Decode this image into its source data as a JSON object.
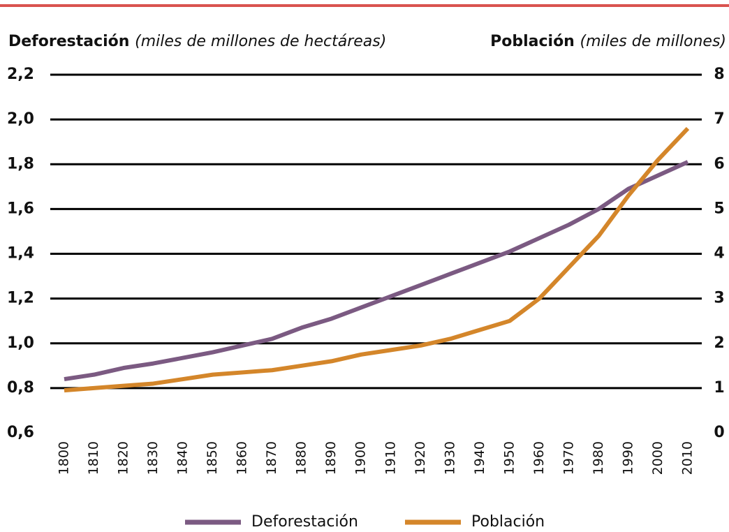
{
  "chart_data": {
    "type": "line",
    "y_label": {
      "name": "Deforestación",
      "unit": "(miles de millones de hectáreas)"
    },
    "y2_label": {
      "name": "Población",
      "unit": "(miles de millones)"
    },
    "categories": [
      "1800",
      "1810",
      "1820",
      "1830",
      "1840",
      "1850",
      "1860",
      "1870",
      "1880",
      "1890",
      "1900",
      "1910",
      "1920",
      "1930",
      "1940",
      "1950",
      "1960",
      "1970",
      "1980",
      "1990",
      "2000",
      "2010"
    ],
    "series": [
      {
        "name": "Deforestación",
        "color": "#7b5a82",
        "values": [
          0.84,
          0.86,
          0.89,
          0.91,
          0.935,
          0.96,
          0.99,
          1.02,
          1.07,
          1.11,
          1.16,
          1.21,
          1.26,
          1.31,
          1.36,
          1.41,
          1.47,
          1.53,
          1.6,
          1.69,
          1.75,
          1.81
        ]
      },
      {
        "name": "Población",
        "color": "#d4862a",
        "axis": "y2",
        "values": [
          0.95,
          1.0,
          1.05,
          1.1,
          1.2,
          1.3,
          1.35,
          1.4,
          1.5,
          1.6,
          1.75,
          1.85,
          1.95,
          2.1,
          2.3,
          2.5,
          3.0,
          3.7,
          4.4,
          5.3,
          6.1,
          6.8
        ]
      }
    ],
    "ylim": [
      0.6,
      2.2
    ],
    "yticks": [
      {
        "value": 0.6,
        "label": "0,6"
      },
      {
        "value": 0.8,
        "label": "0,8"
      },
      {
        "value": 1.0,
        "label": "1,0"
      },
      {
        "value": 1.2,
        "label": "1,2"
      },
      {
        "value": 1.4,
        "label": "1,4"
      },
      {
        "value": 1.6,
        "label": "1,6"
      },
      {
        "value": 1.8,
        "label": "1,8"
      },
      {
        "value": 2.0,
        "label": "2,0"
      },
      {
        "value": 2.2,
        "label": "2,2"
      }
    ],
    "y2lim": [
      0,
      8
    ],
    "y2ticks": [
      0,
      1,
      2,
      3,
      4,
      5,
      6,
      7,
      8
    ],
    "grid": true
  }
}
